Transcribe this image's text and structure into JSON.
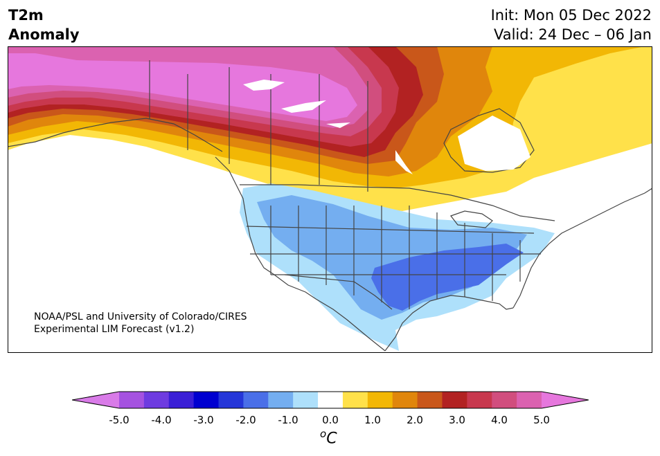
{
  "title": {
    "left_line1": "T2m",
    "left_line2": "Anomaly",
    "init": "Init: Mon 05 Dec 2022",
    "valid": "Valid: 24 Dec – 06 Jan"
  },
  "credit": {
    "line1": "NOAA/PSL and University of Colorado/CIRES",
    "line2": "Experimental LIM Forecast (v1.2)"
  },
  "colorbar": {
    "unit_base": "C",
    "unit_sup": "o",
    "ticks": [
      "-5.0",
      "-4.0",
      "-3.0",
      "-2.0",
      "-1.0",
      "0.0",
      "1.0",
      "2.0",
      "3.0",
      "4.0",
      "5.0"
    ],
    "tick_values": [
      -5,
      -4,
      -3,
      -2,
      -1,
      0,
      1,
      2,
      3,
      4,
      5
    ],
    "range": [
      -5.0,
      5.0
    ],
    "levels": [
      -5.0,
      -4.5,
      -4.0,
      -3.5,
      -3.0,
      -2.5,
      -2.0,
      -1.5,
      -1.0,
      -0.5,
      0.5,
      1.0,
      1.5,
      2.0,
      2.5,
      3.0,
      3.5,
      4.0,
      4.5,
      5.0
    ],
    "colors": [
      "#d97be8",
      "#a552e0",
      "#6e3be0",
      "#3a1fd6",
      "#0000d0",
      "#2536d8",
      "#4a6fe8",
      "#74aef0",
      "#aee0fb",
      "#ffffff",
      "#ffe14a",
      "#f2b705",
      "#e0860c",
      "#c9571a",
      "#b22222",
      "#c8384e",
      "#d14e7e",
      "#db62b0",
      "#e677dd"
    ]
  },
  "map_colors": {
    "anom_pos_5": "#e677dd",
    "anom_pos_45": "#db62b0",
    "anom_pos_4": "#d14e7e",
    "anom_pos_35": "#c8384e",
    "anom_pos_3": "#b22222",
    "anom_pos_25": "#c9571a",
    "anom_pos_2": "#e0860c",
    "anom_pos_15": "#f2b705",
    "anom_pos_1": "#ffe14a",
    "anom_neg_1": "#aee0fb",
    "anom_neg_15": "#74aef0",
    "anom_neg_2": "#4a6fe8",
    "outline": "#444444"
  }
}
